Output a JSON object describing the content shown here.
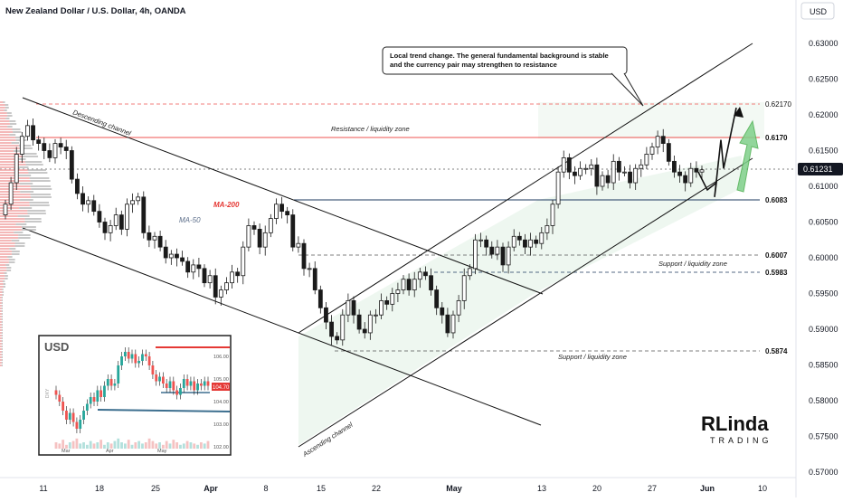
{
  "header": {
    "title": "New Zealand Dollar / U.S. Dollar, 4h, OANDA",
    "currency_button": "USD"
  },
  "chart_data": {
    "type": "candlestick",
    "title": "New Zealand Dollar / U.S. Dollar, 4h, OANDA",
    "y_axis": {
      "ticks": [
        "0.63000",
        "0.62500",
        "0.62000",
        "0.61500",
        "0.61000",
        "0.60500",
        "0.60000",
        "0.59500",
        "0.59000",
        "0.58500",
        "0.58000",
        "0.57500",
        "0.57000"
      ],
      "range": [
        0.57,
        0.63
      ]
    },
    "x_axis": {
      "ticks": [
        "11",
        "18",
        "25",
        "Apr",
        "8",
        "15",
        "22",
        "May",
        "13",
        "20",
        "27",
        "Jun",
        "10"
      ]
    },
    "current_price": "0.61231",
    "price_levels": [
      {
        "label": "0.62170",
        "value": 0.6217,
        "style": "dashed",
        "color": "#ef5350"
      },
      {
        "label": "0.6170",
        "value": 0.617,
        "style": "solid",
        "color": "#ef5350"
      },
      {
        "label": "0.6083",
        "value": 0.6083,
        "style": "solid",
        "color": "#1e3a5f"
      },
      {
        "label": "0.6007",
        "value": 0.6007,
        "style": "dashed",
        "color": "#555555"
      },
      {
        "label": "0.5983",
        "value": 0.5983,
        "style": "dashed",
        "color": "#1e3a5f"
      },
      {
        "label": "0.5874",
        "value": 0.5874,
        "style": "dashed",
        "color": "#555555"
      }
    ],
    "annotations": [
      "Local trend change. The general fundamental background is stable and the currency pair may strengthen to resistance",
      "Resistance / liquidity zone",
      "Support / liquidity zone",
      "Support / liquidity zone",
      "Descending channel",
      "Ascending channel",
      "MA-200",
      "MA-50"
    ],
    "closes": [
      0.6075,
      0.6105,
      0.6145,
      0.617,
      0.6185,
      0.6165,
      0.616,
      0.615,
      0.614,
      0.616,
      0.6155,
      0.615,
      0.611,
      0.609,
      0.6075,
      0.608,
      0.6065,
      0.605,
      0.6035,
      0.6045,
      0.606,
      0.604,
      0.6075,
      0.608,
      0.6085,
      0.6035,
      0.6025,
      0.603,
      0.6015,
      0.6,
      0.6005,
      0.6,
      0.5995,
      0.598,
      0.599,
      0.5985,
      0.5965,
      0.5975,
      0.5945,
      0.5955,
      0.5965,
      0.598,
      0.5975,
      0.6015,
      0.6045,
      0.604,
      0.6015,
      0.6035,
      0.6055,
      0.6075,
      0.6065,
      0.606,
      0.6015,
      0.602,
      0.5985,
      0.5985,
      0.5955,
      0.593,
      0.591,
      0.589,
      0.5885,
      0.592,
      0.594,
      0.592,
      0.59,
      0.5895,
      0.592,
      0.592,
      0.594,
      0.5935,
      0.595,
      0.5955,
      0.597,
      0.5955,
      0.597,
      0.598,
      0.5975,
      0.5955,
      0.593,
      0.592,
      0.5895,
      0.592,
      0.594,
      0.5975,
      0.5985,
      0.6025,
      0.6025,
      0.6015,
      0.6005,
      0.6015,
      0.599,
      0.6015,
      0.603,
      0.6025,
      0.6015,
      0.6025,
      0.602,
      0.6035,
      0.6045,
      0.6075,
      0.612,
      0.614,
      0.612,
      0.6115,
      0.6125,
      0.6125,
      0.613,
      0.61,
      0.6115,
      0.6105,
      0.6135,
      0.612,
      0.612,
      0.6105,
      0.6125,
      0.613,
      0.6145,
      0.6155,
      0.617,
      0.616,
      0.6135,
      0.612,
      0.6115,
      0.6105,
      0.6125,
      0.612,
      0.61231
    ],
    "projection": [
      0.612,
      0.6095,
      0.6105,
      0.6085,
      0.6165,
      0.6125,
      0.621
    ]
  },
  "inset": {
    "title": "USD",
    "y_ticks": [
      "106.00",
      "105.00",
      "104.00",
      "103.00",
      "102.00"
    ],
    "x_ticks": [
      "Mar",
      "Apr",
      "May"
    ],
    "price_badge": "104.70",
    "side_label": "DXY",
    "closes": [
      104.3,
      104.0,
      103.6,
      103.2,
      103.5,
      103.1,
      102.8,
      103.2,
      103.6,
      103.9,
      104.2,
      104.0,
      104.5,
      104.2,
      104.7,
      105.0,
      104.7,
      104.8,
      105.6,
      106.0,
      106.2,
      105.9,
      106.1,
      105.7,
      105.8,
      106.1,
      106.0,
      105.6,
      105.2,
      104.9,
      105.1,
      104.8,
      104.6,
      104.9,
      104.5,
      104.3,
      104.6,
      105.0,
      104.7,
      104.9,
      104.5,
      104.8,
      104.7,
      104.9,
      104.7
    ],
    "volume": [
      0.5,
      0.4,
      0.7,
      0.3,
      0.5,
      0.6,
      0.8,
      0.4,
      0.5,
      0.3,
      0.6,
      0.4,
      0.5,
      0.7,
      0.3,
      0.5,
      0.4,
      0.6,
      0.8,
      0.5,
      0.4,
      0.7,
      0.3,
      0.5,
      0.6,
      0.4,
      0.5,
      0.8,
      0.6,
      0.4,
      0.5,
      0.3,
      0.6,
      0.4,
      0.7,
      0.5,
      0.3,
      0.4,
      0.6,
      0.5,
      0.4,
      0.3,
      0.5,
      0.4,
      0.6
    ]
  },
  "logo": {
    "name": "RLinda",
    "sub": "TRADING"
  },
  "colors": {
    "up": "#26a69a",
    "down": "#ef5350",
    "candle": "#1a1a1a",
    "resistance": "#ef5350",
    "support": "#1e3a5f",
    "channel": "#111111",
    "zone_fill": "#cfe8d4"
  }
}
